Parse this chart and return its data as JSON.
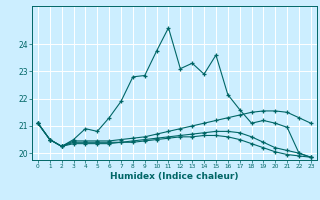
{
  "title": "",
  "xlabel": "Humidex (Indice chaleur)",
  "background_color": "#cceeff",
  "line_color": "#006666",
  "grid_color": "#ffffff",
  "xlim": [
    -0.5,
    23.5
  ],
  "ylim": [
    19.75,
    25.4
  ],
  "yticks": [
    20,
    21,
    22,
    23,
    24
  ],
  "xticks": [
    0,
    1,
    2,
    3,
    4,
    5,
    6,
    7,
    8,
    9,
    10,
    11,
    12,
    13,
    14,
    15,
    16,
    17,
    18,
    19,
    20,
    21,
    22,
    23
  ],
  "curve1_y": [
    21.1,
    20.5,
    20.25,
    20.5,
    20.9,
    20.8,
    21.3,
    21.9,
    22.8,
    22.85,
    23.75,
    24.6,
    23.1,
    23.3,
    22.9,
    23.6,
    22.15,
    21.6,
    21.1,
    21.2,
    21.1,
    20.95,
    20.0,
    19.85
  ],
  "curve2_y": [
    21.1,
    20.5,
    20.25,
    20.45,
    20.45,
    20.45,
    20.45,
    20.5,
    20.55,
    20.6,
    20.7,
    20.8,
    20.9,
    21.0,
    21.1,
    21.2,
    21.3,
    21.4,
    21.5,
    21.55,
    21.55,
    21.5,
    21.3,
    21.1
  ],
  "curve3_y": [
    21.1,
    20.5,
    20.25,
    20.4,
    20.4,
    20.4,
    20.4,
    20.4,
    20.45,
    20.5,
    20.55,
    20.6,
    20.65,
    20.7,
    20.75,
    20.8,
    20.8,
    20.75,
    20.6,
    20.4,
    20.2,
    20.1,
    20.0,
    19.85
  ],
  "curve4_y": [
    21.1,
    20.5,
    20.25,
    20.35,
    20.35,
    20.35,
    20.35,
    20.4,
    20.4,
    20.45,
    20.5,
    20.55,
    20.6,
    20.6,
    20.65,
    20.65,
    20.6,
    20.5,
    20.35,
    20.2,
    20.05,
    19.95,
    19.9,
    19.85
  ]
}
